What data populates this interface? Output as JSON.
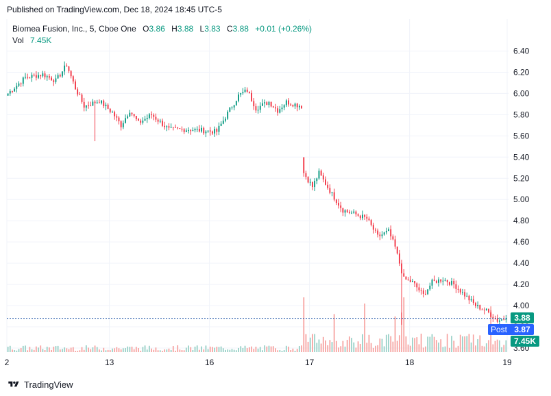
{
  "published": "Published on TradingView.com, Dec 18, 2024 18:45 UTC-5",
  "legend": {
    "title": "Biomea Fusion, Inc., 5, Cboe One",
    "o_label": "O",
    "o_value": "3.86",
    "h_label": "H",
    "h_value": "3.88",
    "l_label": "L",
    "l_value": "3.83",
    "c_label": "C",
    "c_value": "3.88",
    "change": "+0.01 (+0.26%)",
    "vol_label": "Vol",
    "vol_value": "7.45K"
  },
  "badges": {
    "price": "3.88",
    "post_label": "Post",
    "post_price": "3.87",
    "volume": "7.45K"
  },
  "colors": {
    "up": "#089981",
    "down": "#f23645",
    "vol_up": "#9ed3ca",
    "vol_down": "#f7a9a7",
    "price_line": "#1e53a6",
    "post_badge": "#2962ff",
    "grid": "#f0f3fa",
    "text": "#131722"
  },
  "footer": {
    "brand": "TradingView"
  },
  "chart_data": {
    "type": "candlestick",
    "ylim": [
      3.6,
      6.5
    ],
    "y_ticks": [
      "6.40",
      "6.20",
      "6.00",
      "5.80",
      "5.60",
      "5.40",
      "5.20",
      "5.00",
      "4.80",
      "4.60",
      "4.40",
      "4.20",
      "4.00",
      "3.80",
      "3.60"
    ],
    "x_labels": [
      "2",
      "13",
      "16",
      "17",
      "18",
      "19"
    ],
    "last_price": 3.88,
    "grid": true,
    "series": [
      {
        "name": "Price",
        "anchors": [
          {
            "t": 0,
            "p": 6.0
          },
          {
            "t": 8,
            "p": 6.15
          },
          {
            "t": 16,
            "p": 6.18
          },
          {
            "t": 22,
            "p": 6.12
          },
          {
            "t": 27,
            "p": 6.27
          },
          {
            "t": 31,
            "p": 6.05
          },
          {
            "t": 35,
            "p": 5.88
          },
          {
            "t": 42,
            "p": 5.93
          },
          {
            "t": 48,
            "p": 5.82
          },
          {
            "t": 52,
            "p": 5.7
          },
          {
            "t": 56,
            "p": 5.84
          },
          {
            "t": 60,
            "p": 5.72
          },
          {
            "t": 66,
            "p": 5.8
          },
          {
            "t": 74,
            "p": 5.66
          },
          {
            "t": 84,
            "p": 5.66
          },
          {
            "t": 96,
            "p": 5.64
          },
          {
            "t": 100,
            "p": 5.78
          },
          {
            "t": 106,
            "p": 5.98
          },
          {
            "t": 110,
            "p": 6.03
          },
          {
            "t": 114,
            "p": 5.86
          },
          {
            "t": 120,
            "p": 5.92
          },
          {
            "t": 124,
            "p": 5.84
          },
          {
            "t": 128,
            "p": 5.92
          },
          {
            "t": 135,
            "p": 5.88
          },
          {
            "t": 136,
            "p": 5.25
          },
          {
            "t": 140,
            "p": 5.12
          },
          {
            "t": 143,
            "p": 5.25
          },
          {
            "t": 149,
            "p": 5.05
          },
          {
            "t": 154,
            "p": 4.9
          },
          {
            "t": 160,
            "p": 4.86
          },
          {
            "t": 165,
            "p": 4.82
          },
          {
            "t": 170,
            "p": 4.65
          },
          {
            "t": 175,
            "p": 4.7
          },
          {
            "t": 178,
            "p": 4.55
          },
          {
            "t": 182,
            "p": 4.25
          },
          {
            "t": 186,
            "p": 4.22
          },
          {
            "t": 191,
            "p": 4.1
          },
          {
            "t": 195,
            "p": 4.22
          },
          {
            "t": 200,
            "p": 4.25
          },
          {
            "t": 205,
            "p": 4.2
          },
          {
            "t": 210,
            "p": 4.1
          },
          {
            "t": 215,
            "p": 4.0
          },
          {
            "t": 220,
            "p": 3.95
          },
          {
            "t": 225,
            "p": 3.86
          },
          {
            "t": 229,
            "p": 3.88
          }
        ],
        "gaps": [
          135
        ]
      }
    ]
  }
}
